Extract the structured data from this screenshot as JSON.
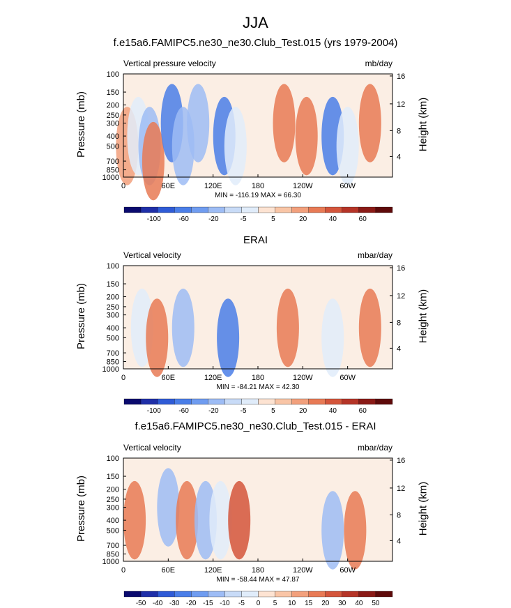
{
  "title": "JJA",
  "chart_data": [
    {
      "type": "heatmap",
      "title": "f.e15a6.FAMIPC5.ne30_ne30.Club_Test.015 (yrs 1979-2004)",
      "left_label": "Vertical pressure velocity",
      "units": "mb/day",
      "ylabel": "Pressure (mb)",
      "ylabel_right": "Height (km)",
      "x_ticks": [
        "0",
        "60E",
        "120E",
        "180",
        "120W",
        "60W"
      ],
      "y_ticks": [
        "100",
        "150",
        "200",
        "250",
        "300",
        "400",
        "500",
        "700",
        "850",
        "1000"
      ],
      "y_ticks_right": [
        "16",
        "12",
        "8",
        "4"
      ],
      "stats": "MIN = -116.19  MAX =  66.30",
      "colorbar_labels": [
        "-100",
        "-60",
        "-20",
        "-5",
        "5",
        "20",
        "40",
        "60"
      ],
      "cells": [
        {
          "lon": 5,
          "p": 500,
          "v": 10
        },
        {
          "lon": 20,
          "p": 400,
          "v": -20
        },
        {
          "lon": 35,
          "p": 500,
          "v": -40
        },
        {
          "lon": 40,
          "p": 700,
          "v": 20
        },
        {
          "lon": 65,
          "p": 300,
          "v": -60
        },
        {
          "lon": 80,
          "p": 500,
          "v": -40
        },
        {
          "lon": 100,
          "p": 300,
          "v": -40
        },
        {
          "lon": 135,
          "p": 400,
          "v": -60
        },
        {
          "lon": 150,
          "p": 500,
          "v": -20
        },
        {
          "lon": 215,
          "p": 300,
          "v": 20
        },
        {
          "lon": 245,
          "p": 400,
          "v": 20
        },
        {
          "lon": 280,
          "p": 400,
          "v": -60
        },
        {
          "lon": 300,
          "p": 500,
          "v": -20
        },
        {
          "lon": 330,
          "p": 300,
          "v": 20
        }
      ]
    },
    {
      "type": "heatmap",
      "title": "ERAI",
      "left_label": "Vertical velocity",
      "units": "mbar/day",
      "ylabel": "Pressure (mb)",
      "ylabel_right": "Height (km)",
      "x_ticks": [
        "0",
        "60E",
        "120E",
        "180",
        "120W",
        "60W"
      ],
      "y_ticks": [
        "100",
        "150",
        "200",
        "250",
        "300",
        "400",
        "500",
        "700",
        "850",
        "1000"
      ],
      "y_ticks_right": [
        "16",
        "12",
        "8",
        "4"
      ],
      "stats": "MIN = -84.21  MAX =  42.30",
      "colorbar_labels": [
        "-100",
        "-60",
        "-20",
        "-5",
        "5",
        "20",
        "40",
        "60"
      ],
      "cells": [
        {
          "lon": 25,
          "p": 400,
          "v": -20
        },
        {
          "lon": 45,
          "p": 500,
          "v": 20
        },
        {
          "lon": 80,
          "p": 400,
          "v": -40
        },
        {
          "lon": 140,
          "p": 500,
          "v": -60
        },
        {
          "lon": 220,
          "p": 400,
          "v": 20
        },
        {
          "lon": 280,
          "p": 500,
          "v": -20
        },
        {
          "lon": 330,
          "p": 400,
          "v": 20
        }
      ]
    },
    {
      "type": "heatmap",
      "title": "f.e15a6.FAMIPC5.ne30_ne30.Club_Test.015 - ERAI",
      "left_label": "Vertical velocity",
      "units": "mbar/day",
      "ylabel": "Pressure (mb)",
      "ylabel_right": "Height (km)",
      "x_ticks": [
        "0",
        "60E",
        "120E",
        "180",
        "120W",
        "60W"
      ],
      "y_ticks": [
        "100",
        "150",
        "200",
        "250",
        "300",
        "400",
        "500",
        "700",
        "850",
        "1000"
      ],
      "y_ticks_right": [
        "16",
        "12",
        "8",
        "4"
      ],
      "stats": "MIN = -58.44  MAX =  47.87",
      "colorbar_labels": [
        "-50",
        "-40",
        "-30",
        "-20",
        "-15",
        "-10",
        "-5",
        "0",
        "5",
        "10",
        "15",
        "20",
        "30",
        "40",
        "50"
      ],
      "cells": [
        {
          "lon": 15,
          "p": 400,
          "v": 20
        },
        {
          "lon": 60,
          "p": 300,
          "v": -40
        },
        {
          "lon": 85,
          "p": 400,
          "v": 20
        },
        {
          "lon": 110,
          "p": 400,
          "v": -40
        },
        {
          "lon": 130,
          "p": 400,
          "v": -20
        },
        {
          "lon": 155,
          "p": 400,
          "v": 30
        },
        {
          "lon": 280,
          "p": 500,
          "v": -40
        },
        {
          "lon": 310,
          "p": 500,
          "v": 20
        }
      ]
    }
  ],
  "colorbar_colors": [
    "#0a0a6e",
    "#1f2fa8",
    "#2f5bd6",
    "#4a7ee8",
    "#6f9cf0",
    "#9dbcf5",
    "#c8dbf7",
    "#e0ecfa",
    "#fde3d2",
    "#f9c5a6",
    "#f2a07c",
    "#e87a55",
    "#d4553b",
    "#b53427",
    "#8a1a16",
    "#5e0a0a"
  ]
}
